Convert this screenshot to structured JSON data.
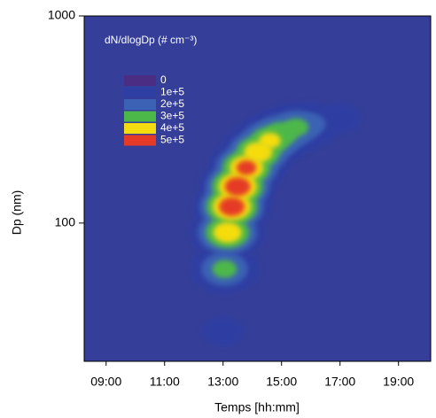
{
  "chart_data": {
    "type": "contour",
    "title": "dN/dlogDp (# cm⁻³)",
    "x_label": "Temps [hh:mm]",
    "y_label": "Dp (nm)",
    "log_y": true,
    "background_color": "#353f99",
    "xlim": [
      8.25,
      20.1
    ],
    "xticks": [
      {
        "value": 9,
        "label": "09:00"
      },
      {
        "value": 11,
        "label": "11:00"
      },
      {
        "value": 13,
        "label": "13:00"
      },
      {
        "value": 15,
        "label": "15:00"
      },
      {
        "value": 17,
        "label": "17:00"
      },
      {
        "value": 19,
        "label": "19:00"
      }
    ],
    "ylim": [
      21.5,
      1000
    ],
    "yticks": [
      100,
      1000
    ],
    "levels": [
      {
        "value": 0,
        "label": "0",
        "color": "#4b2d84"
      },
      {
        "value": 100000,
        "label": "1e+5",
        "color": "#2f3ea2"
      },
      {
        "value": 200000,
        "label": "2e+5",
        "color": "#3b62b4"
      },
      {
        "value": 300000,
        "label": "3e+5",
        "color": "#4db84a"
      },
      {
        "value": 400000,
        "label": "4e+5",
        "color": "#f5dc10"
      },
      {
        "value": 500000,
        "label": "5e+5",
        "color": "#e53a28"
      }
    ],
    "x": [
      13.0,
      13.05,
      13.15,
      13.3,
      13.5,
      13.8,
      14.2,
      14.6,
      15.0,
      15.5,
      16.0,
      17.0,
      18.0,
      19.0
    ],
    "y": [
      30,
      60,
      90,
      120,
      150,
      185,
      220,
      250,
      270,
      290,
      300,
      320,
      350,
      370
    ],
    "values": [
      100000,
      300000,
      450000,
      550000,
      550000,
      500000,
      450000,
      400000,
      350000,
      300000,
      200000,
      100000,
      50000,
      50000
    ]
  }
}
